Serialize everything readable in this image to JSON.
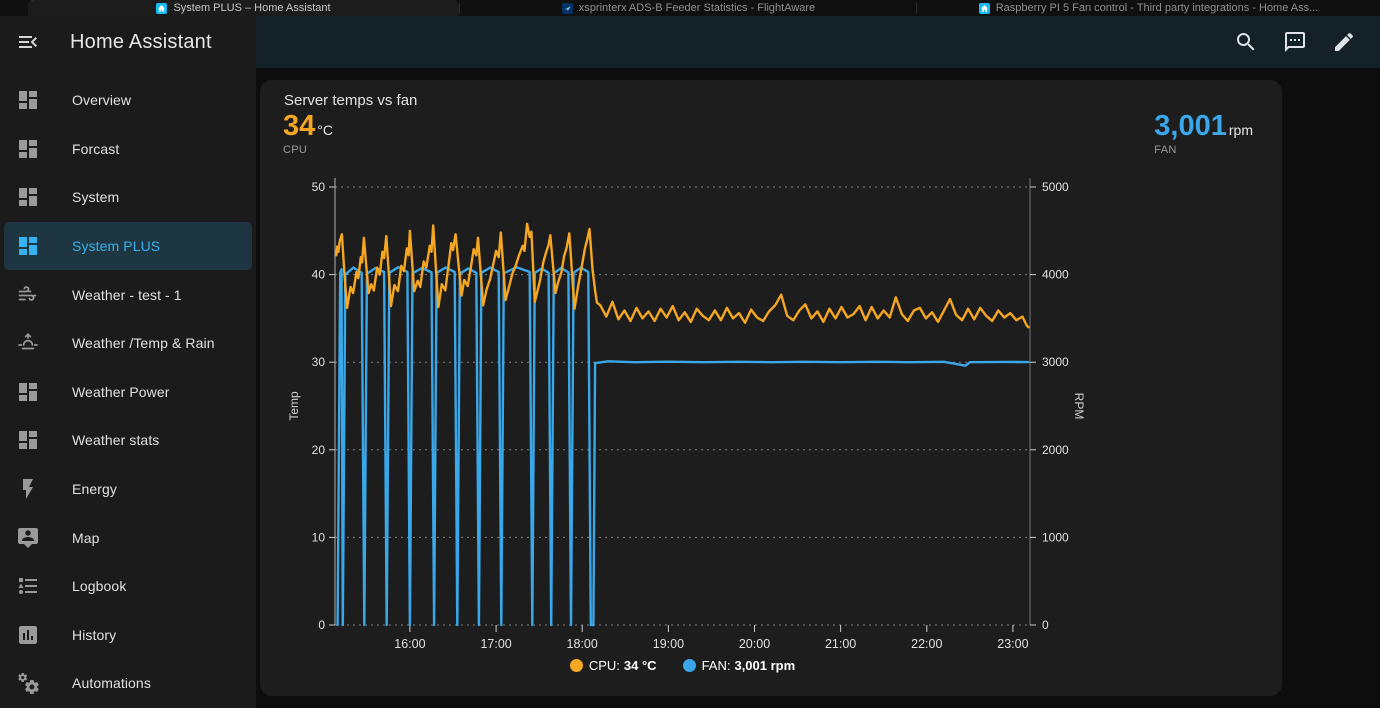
{
  "colors": {
    "cpu": "#F5A623",
    "fan": "#3AA7E9",
    "accent": "#37B2F1"
  },
  "browser_tabs": [
    {
      "title": "System PLUS – Home Assistant",
      "icon": "home-assistant",
      "active": true
    },
    {
      "title": "xsprinterx ADS-B Feeder Statistics - FlightAware",
      "icon": "flightaware",
      "active": false
    },
    {
      "title": "Raspberry PI 5 Fan control - Third party integrations - Home Ass...",
      "icon": "home-assistant",
      "active": false
    }
  ],
  "sidebar": {
    "title": "Home Assistant",
    "items": [
      {
        "label": "Overview",
        "icon": "dashboard",
        "active": false
      },
      {
        "label": "Forcast",
        "icon": "dashboard",
        "active": false
      },
      {
        "label": "System",
        "icon": "dashboard",
        "active": false
      },
      {
        "label": "System PLUS",
        "icon": "dashboard",
        "active": true
      },
      {
        "label": "Weather - test - 1",
        "icon": "weather-windy",
        "active": false
      },
      {
        "label": "Weather /Temp & Rain",
        "icon": "weather-sunset",
        "active": false
      },
      {
        "label": "Weather Power",
        "icon": "dashboard",
        "active": false
      },
      {
        "label": "Weather stats",
        "icon": "dashboard",
        "active": false
      },
      {
        "label": "Energy",
        "icon": "lightning-bolt",
        "active": false
      },
      {
        "label": "Map",
        "icon": "map-account",
        "active": false
      },
      {
        "label": "Logbook",
        "icon": "list-bulleted",
        "active": false
      },
      {
        "label": "History",
        "icon": "chart-box",
        "active": false
      },
      {
        "label": "Automations",
        "icon": "cogs",
        "active": false
      }
    ]
  },
  "card": {
    "title": "Server temps vs fan",
    "cpu_stat": {
      "value": "34",
      "unit": "°C",
      "label": "CPU"
    },
    "fan_stat": {
      "value": "3,001",
      "unit": "rpm",
      "label": "FAN"
    },
    "legend": [
      {
        "name": "CPU:",
        "value": "34 °C",
        "color": "#F5A623"
      },
      {
        "name": "FAN:",
        "value": "3,001 rpm",
        "color": "#3AA7E9"
      }
    ]
  },
  "chart_data": {
    "type": "line",
    "title": "Server temps vs fan",
    "grid": "dashed-horizontal",
    "legend_position": "bottom-center",
    "x_axis": {
      "range_hours": [
        15.13,
        23.2
      ],
      "ticks": [
        {
          "t": 16,
          "label": "16:00"
        },
        {
          "t": 17,
          "label": "17:00"
        },
        {
          "t": 18,
          "label": "18:00"
        },
        {
          "t": 19,
          "label": "19:00"
        },
        {
          "t": 20,
          "label": "20:00"
        },
        {
          "t": 21,
          "label": "21:00"
        },
        {
          "t": 22,
          "label": "22:00"
        },
        {
          "t": 23,
          "label": "23:00"
        }
      ]
    },
    "y_left": {
      "label": "Temp",
      "range": [
        0,
        50
      ],
      "ticks": [
        0,
        10,
        20,
        30,
        40,
        50
      ]
    },
    "y_right": {
      "label": "RPM",
      "range": [
        0,
        5000
      ],
      "ticks": [
        0,
        1000,
        2000,
        3000,
        4000,
        5000
      ]
    },
    "series": [
      {
        "name": "FAN",
        "unit": "rpm",
        "axis": "right",
        "color": "#3AA7E9",
        "points": [
          [
            15.16,
            0
          ],
          [
            15.19,
            4020
          ],
          [
            15.205,
            4060
          ],
          [
            15.22,
            0
          ],
          [
            15.25,
            4000
          ],
          [
            15.345,
            4080
          ],
          [
            15.44,
            4020
          ],
          [
            15.47,
            0
          ],
          [
            15.5,
            4010
          ],
          [
            15.6,
            4075
          ],
          [
            15.7,
            4030
          ],
          [
            15.73,
            0
          ],
          [
            15.76,
            4020
          ],
          [
            15.865,
            4085
          ],
          [
            15.97,
            4030
          ],
          [
            16.0,
            0
          ],
          [
            16.03,
            4015
          ],
          [
            16.14,
            4075
          ],
          [
            16.25,
            4025
          ],
          [
            16.28,
            0
          ],
          [
            16.31,
            4020
          ],
          [
            16.415,
            4080
          ],
          [
            16.52,
            4030
          ],
          [
            16.55,
            0
          ],
          [
            16.58,
            4010
          ],
          [
            16.675,
            4070
          ],
          [
            16.77,
            4020
          ],
          [
            16.8,
            0
          ],
          [
            16.83,
            4020
          ],
          [
            16.93,
            4080
          ],
          [
            17.03,
            4030
          ],
          [
            17.06,
            0
          ],
          [
            17.09,
            4015
          ],
          [
            17.24,
            4085
          ],
          [
            17.39,
            4030
          ],
          [
            17.42,
            0
          ],
          [
            17.45,
            4020
          ],
          [
            17.53,
            4070
          ],
          [
            17.61,
            4020
          ],
          [
            17.64,
            0
          ],
          [
            17.67,
            4015
          ],
          [
            17.755,
            4075
          ],
          [
            17.84,
            4025
          ],
          [
            17.87,
            0
          ],
          [
            17.9,
            4020
          ],
          [
            17.985,
            4080
          ],
          [
            18.07,
            4030
          ],
          [
            18.1,
            0
          ],
          [
            18.13,
            0
          ],
          [
            18.15,
            2990
          ],
          [
            18.3,
            3010
          ],
          [
            18.6,
            3000
          ],
          [
            19.0,
            3006
          ],
          [
            19.4,
            3000
          ],
          [
            19.8,
            3004
          ],
          [
            20.2,
            3000
          ],
          [
            20.6,
            3005
          ],
          [
            21.0,
            3000
          ],
          [
            21.4,
            3004
          ],
          [
            21.8,
            3000
          ],
          [
            22.2,
            3005
          ],
          [
            22.45,
            2960
          ],
          [
            22.5,
            3000
          ],
          [
            22.9,
            3003
          ],
          [
            23.18,
            3001
          ]
        ]
      },
      {
        "name": "CPU",
        "unit": "°C",
        "axis": "left",
        "color": "#F5A623",
        "points": [
          [
            15.145,
            42.2
          ],
          [
            15.155,
            43.2
          ],
          [
            15.17,
            42.6
          ],
          [
            15.185,
            43.8
          ],
          [
            15.21,
            44.6
          ],
          [
            15.24,
            40.0
          ],
          [
            15.27,
            36.2
          ],
          [
            15.31,
            38.6
          ],
          [
            15.34,
            37.9
          ],
          [
            15.38,
            40.3
          ],
          [
            15.4,
            39.6
          ],
          [
            15.43,
            42.0
          ],
          [
            15.445,
            41.4
          ],
          [
            15.465,
            44.2
          ],
          [
            15.52,
            37.9
          ],
          [
            15.55,
            38.9
          ],
          [
            15.58,
            38.2
          ],
          [
            15.62,
            40.8
          ],
          [
            15.65,
            40.0
          ],
          [
            15.68,
            42.6
          ],
          [
            15.7,
            41.9
          ],
          [
            15.725,
            44.4
          ],
          [
            15.78,
            36.4
          ],
          [
            15.82,
            38.8
          ],
          [
            15.86,
            38.1
          ],
          [
            15.9,
            41.0
          ],
          [
            15.93,
            40.4
          ],
          [
            15.965,
            43.0
          ],
          [
            15.985,
            42.2
          ],
          [
            16.0,
            45.0
          ],
          [
            16.05,
            38.1
          ],
          [
            16.09,
            39.3
          ],
          [
            16.12,
            38.6
          ],
          [
            16.16,
            41.5
          ],
          [
            16.19,
            40.8
          ],
          [
            16.23,
            43.3
          ],
          [
            16.25,
            42.6
          ],
          [
            16.27,
            45.6
          ],
          [
            16.33,
            36.3
          ],
          [
            16.37,
            38.9
          ],
          [
            16.41,
            38.2
          ],
          [
            16.45,
            41.2
          ],
          [
            16.48,
            43.6
          ],
          [
            16.5,
            42.8
          ],
          [
            16.53,
            44.6
          ],
          [
            16.6,
            37.6
          ],
          [
            16.63,
            39.4
          ],
          [
            16.67,
            38.7
          ],
          [
            16.71,
            41.0
          ],
          [
            16.74,
            42.9
          ],
          [
            16.77,
            42.2
          ],
          [
            16.79,
            44.2
          ],
          [
            16.85,
            36.5
          ],
          [
            16.89,
            38.3
          ],
          [
            16.93,
            39.5
          ],
          [
            16.97,
            41.3
          ],
          [
            17.0,
            42.7
          ],
          [
            17.03,
            42.0
          ],
          [
            17.055,
            44.8
          ],
          [
            17.11,
            37.1
          ],
          [
            17.15,
            38.6
          ],
          [
            17.19,
            40.1
          ],
          [
            17.23,
            41.1
          ],
          [
            17.27,
            42.3
          ],
          [
            17.31,
            43.3
          ],
          [
            17.33,
            42.7
          ],
          [
            17.36,
            45.8
          ],
          [
            17.39,
            44.3
          ],
          [
            17.41,
            44.9
          ],
          [
            17.45,
            36.9
          ],
          [
            17.48,
            38.1
          ],
          [
            17.51,
            39.3
          ],
          [
            17.55,
            41.5
          ],
          [
            17.58,
            42.5
          ],
          [
            17.61,
            43.4
          ],
          [
            17.63,
            44.5
          ],
          [
            17.69,
            37.9
          ],
          [
            17.72,
            39.1
          ],
          [
            17.76,
            40.3
          ],
          [
            17.79,
            42.1
          ],
          [
            17.82,
            43.1
          ],
          [
            17.85,
            44.7
          ],
          [
            17.91,
            36.1
          ],
          [
            17.95,
            38.5
          ],
          [
            17.99,
            40.7
          ],
          [
            18.03,
            42.9
          ],
          [
            18.06,
            44.1
          ],
          [
            18.085,
            45.2
          ],
          [
            18.12,
            40.5
          ],
          [
            18.15,
            38.2
          ],
          [
            18.17,
            36.8
          ],
          [
            18.21,
            36.5
          ],
          [
            18.28,
            35.2
          ],
          [
            18.35,
            36.9
          ],
          [
            18.42,
            34.9
          ],
          [
            18.49,
            35.9
          ],
          [
            18.56,
            34.7
          ],
          [
            18.63,
            36.2
          ],
          [
            18.7,
            35.0
          ],
          [
            18.77,
            35.8
          ],
          [
            18.84,
            34.7
          ],
          [
            18.91,
            36.1
          ],
          [
            18.98,
            35.1
          ],
          [
            19.05,
            36.4
          ],
          [
            19.12,
            34.8
          ],
          [
            19.19,
            35.7
          ],
          [
            19.26,
            34.6
          ],
          [
            19.33,
            36.1
          ],
          [
            19.4,
            35.3
          ],
          [
            19.47,
            34.8
          ],
          [
            19.54,
            35.9
          ],
          [
            19.61,
            34.8
          ],
          [
            19.68,
            36.2
          ],
          [
            19.75,
            35.0
          ],
          [
            19.82,
            35.6
          ],
          [
            19.89,
            34.5
          ],
          [
            19.96,
            36.0
          ],
          [
            20.03,
            35.1
          ],
          [
            20.1,
            34.7
          ],
          [
            20.17,
            35.8
          ],
          [
            20.24,
            36.5
          ],
          [
            20.31,
            37.7
          ],
          [
            20.38,
            35.3
          ],
          [
            20.45,
            34.8
          ],
          [
            20.52,
            35.9
          ],
          [
            20.59,
            36.6
          ],
          [
            20.66,
            35.0
          ],
          [
            20.73,
            35.8
          ],
          [
            20.8,
            34.6
          ],
          [
            20.87,
            36.1
          ],
          [
            20.94,
            35.0
          ],
          [
            21.01,
            36.3
          ],
          [
            21.08,
            35.1
          ],
          [
            21.15,
            35.5
          ],
          [
            21.22,
            36.4
          ],
          [
            21.29,
            34.8
          ],
          [
            21.36,
            36.3
          ],
          [
            21.43,
            35.0
          ],
          [
            21.5,
            35.9
          ],
          [
            21.57,
            35.1
          ],
          [
            21.64,
            37.4
          ],
          [
            21.71,
            35.5
          ],
          [
            21.78,
            34.7
          ],
          [
            21.85,
            35.9
          ],
          [
            21.92,
            36.2
          ],
          [
            21.99,
            35.0
          ],
          [
            22.06,
            35.7
          ],
          [
            22.13,
            34.6
          ],
          [
            22.2,
            35.9
          ],
          [
            22.27,
            37.2
          ],
          [
            22.34,
            35.4
          ],
          [
            22.41,
            34.8
          ],
          [
            22.48,
            36.1
          ],
          [
            22.55,
            34.9
          ],
          [
            22.62,
            36.2
          ],
          [
            22.69,
            35.3
          ],
          [
            22.76,
            34.7
          ],
          [
            22.83,
            35.9
          ],
          [
            22.9,
            35.1
          ],
          [
            22.97,
            35.6
          ],
          [
            23.04,
            34.8
          ],
          [
            23.11,
            35.2
          ],
          [
            23.16,
            34.2
          ],
          [
            23.18,
            34.0
          ]
        ]
      }
    ]
  }
}
